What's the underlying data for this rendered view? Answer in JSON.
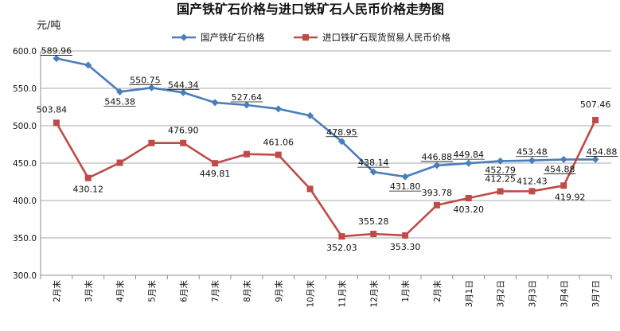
{
  "chart_data": {
    "type": "line",
    "title": "国产铁矿石价格与进口铁矿石人民币价格走势图",
    "ylabel": "元/吨",
    "xlabel": "",
    "ylim": [
      300,
      600
    ],
    "yticks": [
      "300.0",
      "350.0",
      "400.0",
      "450.0",
      "500.0",
      "550.0",
      "600.0"
    ],
    "grid": true,
    "legend_position": "top-right",
    "categories": [
      "2月末",
      "3月末",
      "4月末",
      "5月末",
      "6月末",
      "7月末",
      "8月末",
      "9月末",
      "10月末",
      "11月末",
      "12月末",
      "1月末",
      "2月末",
      "3月1日",
      "3月2日",
      "3月3日",
      "3月4日",
      "3月7日"
    ],
    "series": [
      {
        "name": "国产铁矿石价格",
        "color": "#4a7ebb",
        "marker": "diamond",
        "values": [
          589.96,
          581.0,
          545.38,
          550.75,
          544.34,
          531.0,
          527.64,
          522.5,
          513.5,
          478.95,
          438.14,
          431.8,
          446.88,
          449.84,
          452.79,
          453.48,
          454.88,
          454.88
        ],
        "labels": [
          "589.96",
          "",
          "545.38",
          "550.75",
          "544.34",
          "",
          "527.64",
          "",
          "",
          "478.95",
          "438.14",
          "431.80",
          "446.88",
          "449.84",
          "452.79",
          "453.48",
          "454.88",
          "454.88"
        ]
      },
      {
        "name": "进口铁矿石现货贸易人民币价格",
        "color": "#be4b48",
        "marker": "square",
        "values": [
          503.84,
          430.12,
          450.5,
          476.9,
          476.9,
          449.81,
          462.0,
          461.06,
          415.5,
          352.03,
          355.28,
          353.3,
          393.78,
          403.2,
          412.25,
          412.43,
          419.92,
          507.46
        ],
        "labels": [
          "503.84",
          "430.12",
          "",
          "",
          "476.90",
          "449.81",
          "",
          "461.06",
          "",
          "352.03",
          "355.28",
          "353.30",
          "393.78",
          "403.20",
          "412.25",
          "412.43",
          "419.92",
          "507.46"
        ]
      }
    ]
  }
}
